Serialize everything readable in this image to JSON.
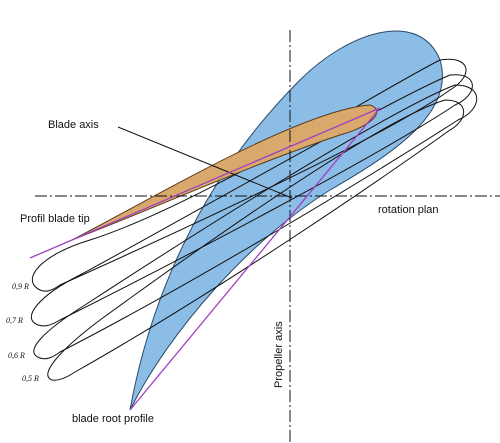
{
  "labels": {
    "blade_axis": "Blade axis",
    "profil_blade_tip": "Profil blade tip",
    "rotation_plan": "rotation plan",
    "propeller_axis": "Propeller axis",
    "blade_root_profile": "blade root profile"
  },
  "sections": [
    "0,9 R",
    "0,7 R",
    "0,6 R",
    "0,5 R"
  ]
}
